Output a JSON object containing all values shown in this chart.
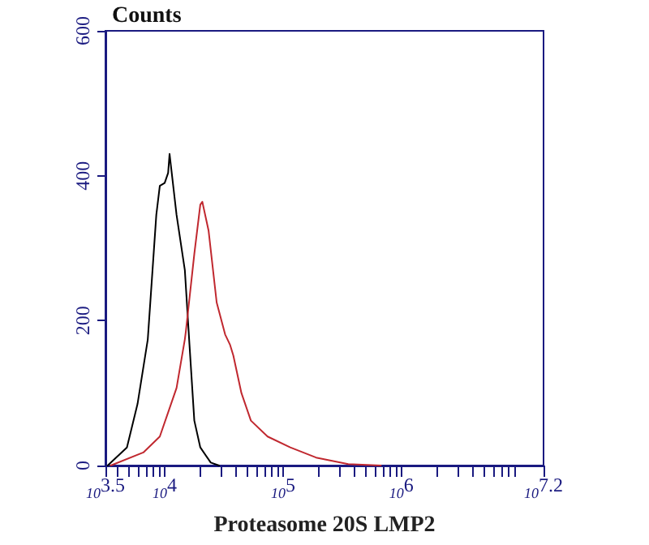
{
  "chart_data": {
    "type": "line",
    "ylabel": "Counts",
    "xlabel": "Proteasome 20S LMP2",
    "log": "x",
    "marker": "none",
    "line_style": "solid",
    "grid": false,
    "xlim": [
      3162,
      15849000
    ],
    "ylim": [
      0,
      600
    ],
    "yticks": [
      0,
      200,
      400,
      600
    ],
    "xticks": [
      {
        "value": 3162,
        "label": "10$^{3.5}$"
      },
      {
        "value": 4000,
        "label": null
      },
      {
        "value": 5000,
        "label": null
      },
      {
        "value": 6000,
        "label": null
      },
      {
        "value": 7000,
        "label": null
      },
      {
        "value": 8000,
        "label": null
      },
      {
        "value": 9000,
        "label": null
      },
      {
        "value": 10000,
        "label": "10$^{4}$"
      },
      {
        "value": 20000,
        "label": null
      },
      {
        "value": 30000,
        "label": null
      },
      {
        "value": 40000,
        "label": null
      },
      {
        "value": 50000,
        "label": null
      },
      {
        "value": 60000,
        "label": null
      },
      {
        "value": 70000,
        "label": null
      },
      {
        "value": 80000,
        "label": null
      },
      {
        "value": 90000,
        "label": null
      },
      {
        "value": 100000,
        "label": "10$^{5}$"
      },
      {
        "value": 200000,
        "label": null
      },
      {
        "value": 300000,
        "label": null
      },
      {
        "value": 400000,
        "label": null
      },
      {
        "value": 500000,
        "label": null
      },
      {
        "value": 600000,
        "label": null
      },
      {
        "value": 700000,
        "label": null
      },
      {
        "value": 800000,
        "label": null
      },
      {
        "value": 900000,
        "label": null
      },
      {
        "value": 1000000,
        "label": "10$^{6}$"
      },
      {
        "value": 2000000,
        "label": null
      },
      {
        "value": 3000000,
        "label": null
      },
      {
        "value": 4000000,
        "label": null
      },
      {
        "value": 5000000,
        "label": null
      },
      {
        "value": 6000000,
        "label": null
      },
      {
        "value": 7000000,
        "label": null
      },
      {
        "value": 8000000,
        "label": null
      },
      {
        "value": 9000000,
        "label": null
      },
      {
        "value": 15849000,
        "label": "10$^{7.2}$"
      }
    ],
    "series": [
      {
        "color": "#000000",
        "x": [
          3300,
          4800,
          5900,
          7200,
          8500,
          9100,
          10000,
          10700,
          11000,
          12600,
          14800,
          16200,
          17800,
          20000,
          24500,
          28800
        ],
        "values": [
          0,
          25,
          85,
          174,
          346,
          386,
          390,
          404,
          430,
          346,
          270,
          167,
          62,
          25,
          4,
          0
        ]
      },
      {
        "color": "#c0282f",
        "x": [
          3500,
          6600,
          9100,
          12600,
          14800,
          15100,
          17800,
          20000,
          20800,
          23500,
          27500,
          32400,
          35600,
          38000,
          44500,
          53500,
          74000,
          115000,
          190000,
          355000,
          670000
        ],
        "values": [
          0,
          18,
          40,
          107,
          174,
          185,
          292,
          360,
          364,
          324,
          225,
          181,
          167,
          152,
          100,
          62,
          40,
          25,
          11,
          2,
          0
        ]
      }
    ]
  }
}
